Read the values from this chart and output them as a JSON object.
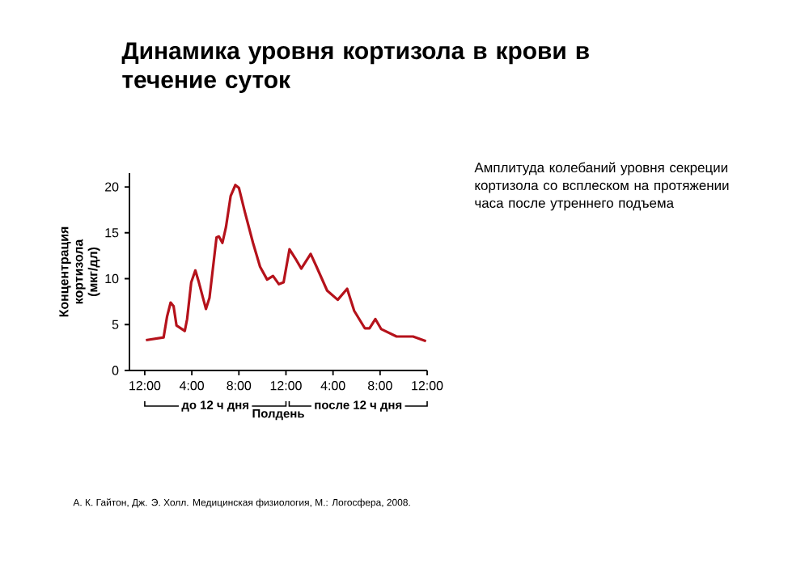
{
  "chart_data": {
    "type": "line",
    "title": "Динамика уровня кортизола в крови в течение суток",
    "xlabel": "Полдень",
    "ylabel": "Концентрация кортизола (мкг/дл)",
    "annotations": [
      "Амплитуда колебаний уровня секреции кортизола со всплеском на протяжении часа после утреннего подъема",
      "до 12 ч дня",
      "после 12 ч дня",
      "А. К. Гайтон, Дж. Э. Холл. Медицинская физиология, М.: Логосфера, 2008."
    ],
    "x": [
      "2000-01-01T00:06",
      "2000-01-01T01:36",
      "2000-01-01T01:54",
      "2000-01-01T02:12",
      "2000-01-01T02:27",
      "2000-01-01T02:42",
      "2000-01-01T03:24",
      "2000-01-01T03:36",
      "2000-01-01T03:57",
      "2000-01-01T04:18",
      "2000-01-01T04:36",
      "2000-01-01T05:12",
      "2000-01-01T05:30",
      "2000-01-01T06:06",
      "2000-01-01T06:18",
      "2000-01-01T06:36",
      "2000-01-01T06:54",
      "2000-01-01T07:18",
      "2000-01-01T07:42",
      "2000-01-01T08:00",
      "2000-01-01T08:30",
      "2000-01-01T09:12",
      "2000-01-01T09:48",
      "2000-01-01T10:24",
      "2000-01-01T10:54",
      "2000-01-01T11:24",
      "2000-01-01T11:48",
      "2000-01-01T12:18",
      "2000-01-01T12:48",
      "2000-01-01T13:18",
      "2000-01-01T14:06",
      "2000-01-01T14:36",
      "2000-01-01T15:30",
      "2000-01-01T16:24",
      "2000-01-01T17:12",
      "2000-01-01T17:48",
      "2000-01-01T18:42",
      "2000-01-01T19:06",
      "2000-01-01T19:36",
      "2000-01-01T20:06",
      "2000-01-01T21:24",
      "2000-01-01T22:48",
      "2000-01-01T23:54"
    ],
    "series": [
      {
        "color": "#b5121b",
        "values": [
          3.3,
          3.6,
          5.9,
          7.4,
          7.0,
          4.9,
          4.3,
          5.6,
          9.6,
          10.9,
          9.6,
          6.7,
          7.9,
          14.5,
          14.6,
          13.9,
          15.6,
          19.0,
          20.2,
          19.9,
          17.3,
          13.9,
          11.3,
          9.9,
          10.3,
          9.4,
          9.6,
          13.2,
          12.2,
          11.1,
          12.7,
          11.3,
          8.7,
          7.7,
          8.9,
          6.5,
          4.6,
          4.6,
          5.6,
          4.5,
          3.7,
          3.7,
          3.2
        ]
      }
    ],
    "xlim": [
      "1999-12-31T22:42",
      "2000-01-02T00:00"
    ],
    "ylim": [
      0,
      21.5
    ],
    "xticks": [
      {
        "value": "2000-01-01T00:00",
        "label": "12:00"
      },
      {
        "value": "2000-01-01T04:00",
        "label": "4:00"
      },
      {
        "value": "2000-01-01T08:00",
        "label": "8:00"
      },
      {
        "value": "2000-01-01T12:00",
        "label": "12:00"
      },
      {
        "value": "2000-01-01T16:00",
        "label": "4:00"
      },
      {
        "value": "2000-01-01T20:00",
        "label": "8:00"
      },
      {
        "value": "2000-01-02T00:00",
        "label": "12:00"
      }
    ],
    "yticks": [
      0,
      5,
      10,
      15,
      20
    ],
    "grid": false,
    "legend": false,
    "marker": "none",
    "line_style": "solid"
  }
}
